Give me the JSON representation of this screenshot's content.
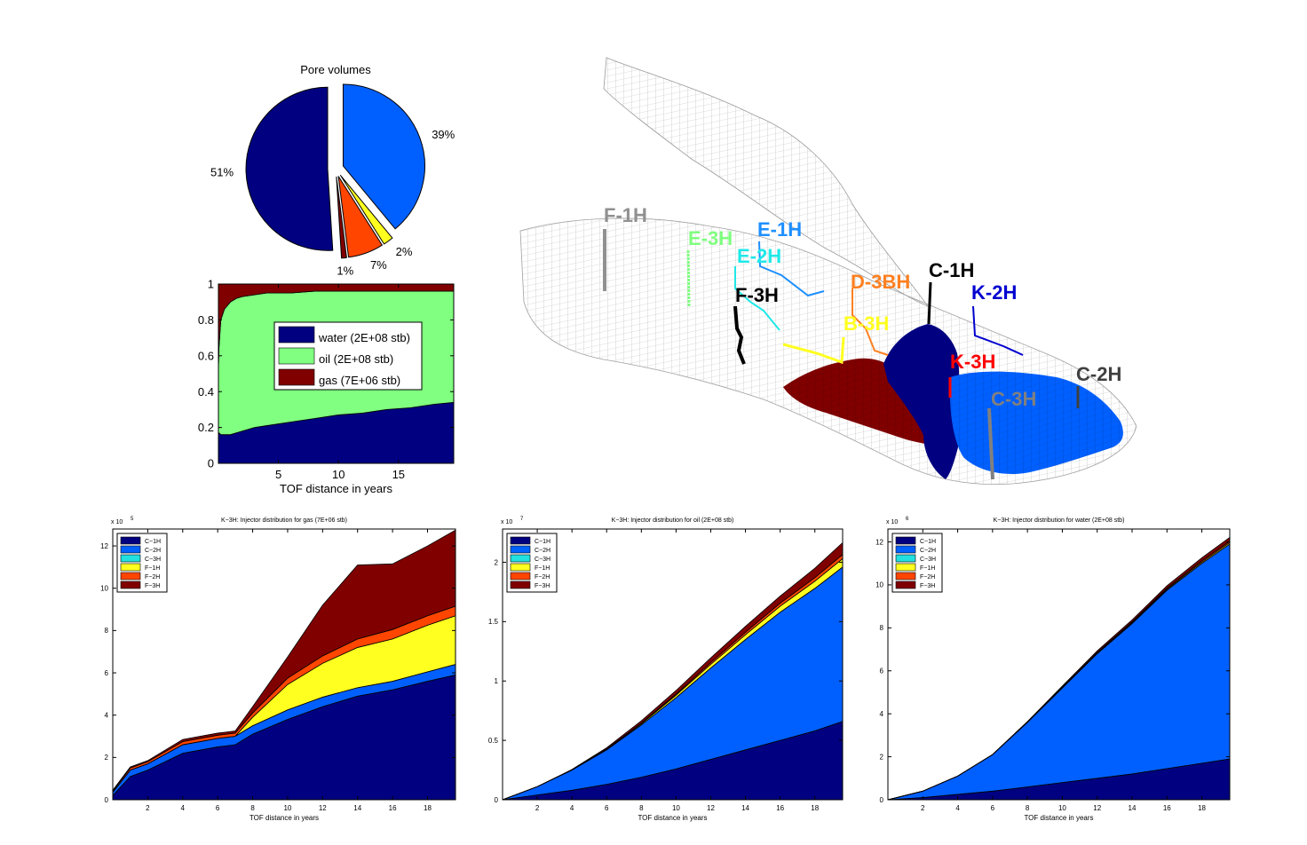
{
  "colors": {
    "water": "#000080",
    "oil": "#80ff80",
    "gas": "#800000",
    "C-1H": "#000080",
    "C-2H": "#0060ff",
    "C-3H": "#20e0e0",
    "F-1H": "#ffff20",
    "F-2H": "#ff4500",
    "F-3H": "#800000"
  },
  "chart_data": [
    {
      "type": "pie",
      "title": "Pore volumes",
      "values": [
        51,
        39,
        2,
        7,
        1
      ],
      "labels": [
        "51%",
        "39%",
        "2%",
        "7%",
        "1%"
      ],
      "slice_colors": [
        "#000080",
        "#0060ff",
        "#ffff20",
        "#ff4500",
        "#800000"
      ],
      "exploded": [
        true,
        true,
        true,
        true,
        true
      ]
    },
    {
      "type": "area",
      "title": "",
      "xlabel": "TOF distance in years",
      "ylabel": "",
      "xlim": [
        0,
        19.6
      ],
      "ylim": [
        0,
        1
      ],
      "xticks": [
        5,
        10,
        15
      ],
      "yticks": [
        0,
        0.2,
        0.4,
        0.6,
        0.8,
        1
      ],
      "ytick_labels": [
        "0",
        "0.2",
        "0.4",
        "0.6",
        "0.8",
        "1"
      ],
      "legend": "center",
      "x": [
        0,
        0.05,
        0.2,
        0.5,
        1,
        1.5,
        2,
        3,
        4,
        5,
        6,
        8,
        10,
        12,
        14,
        16,
        18,
        19.6
      ],
      "series": [
        {
          "name": "water (2E+08 stb)",
          "values": [
            0.17,
            0.17,
            0.16,
            0.16,
            0.16,
            0.17,
            0.18,
            0.2,
            0.21,
            0.22,
            0.23,
            0.25,
            0.27,
            0.28,
            0.3,
            0.31,
            0.33,
            0.34
          ]
        },
        {
          "name": "oil (2E+08 stb)",
          "values": [
            0.36,
            0.48,
            0.64,
            0.7,
            0.74,
            0.75,
            0.75,
            0.74,
            0.74,
            0.73,
            0.72,
            0.71,
            0.69,
            0.68,
            0.66,
            0.65,
            0.63,
            0.62
          ]
        },
        {
          "name": "gas (7E+06 stb)",
          "values": [
            0.47,
            0.35,
            0.2,
            0.14,
            0.1,
            0.08,
            0.07,
            0.06,
            0.05,
            0.05,
            0.05,
            0.04,
            0.04,
            0.04,
            0.04,
            0.04,
            0.04,
            0.04
          ]
        }
      ]
    },
    {
      "type": "area",
      "title": "K−3H: Injector distribution for gas (7E+06 stb)",
      "xlabel": "TOF distance in years",
      "ylabel": "",
      "y_exponent": "x 10",
      "y_exponent_power": "5",
      "xlim": [
        0,
        19.6
      ],
      "ylim": [
        0,
        12.8
      ],
      "xticks": [
        2,
        4,
        6,
        8,
        10,
        12,
        14,
        16,
        18
      ],
      "yticks": [
        0,
        2,
        4,
        6,
        8,
        10,
        12
      ],
      "legend": "top-left",
      "x": [
        0,
        1,
        2,
        4,
        6,
        7,
        8,
        10,
        12,
        14,
        16,
        18,
        19.6
      ],
      "series": [
        {
          "name": "C−1H",
          "values": [
            0.2,
            1.1,
            1.4,
            2.2,
            2.5,
            2.6,
            3.1,
            3.8,
            4.4,
            4.9,
            5.2,
            5.6,
            5.9
          ]
        },
        {
          "name": "C−2H",
          "values": [
            0.15,
            0.3,
            0.3,
            0.4,
            0.4,
            0.4,
            0.4,
            0.45,
            0.45,
            0.4,
            0.4,
            0.45,
            0.5
          ]
        },
        {
          "name": "C−3H",
          "values": [
            0,
            0,
            0,
            0,
            0,
            0,
            0,
            0,
            0,
            0,
            0,
            0,
            0
          ]
        },
        {
          "name": "F−1H",
          "values": [
            0,
            0,
            0,
            0,
            0,
            0,
            0.4,
            1.2,
            1.6,
            1.9,
            2.0,
            2.2,
            2.3
          ]
        },
        {
          "name": "F−2H",
          "values": [
            0.05,
            0.1,
            0.1,
            0.15,
            0.15,
            0.15,
            0.2,
            0.3,
            0.35,
            0.4,
            0.45,
            0.45,
            0.45
          ]
        },
        {
          "name": "F−3H",
          "values": [
            0.05,
            0.05,
            0.05,
            0.1,
            0.1,
            0.1,
            0.3,
            1.0,
            2.4,
            3.5,
            3.1,
            3.3,
            3.6
          ]
        }
      ]
    },
    {
      "type": "area",
      "title": "K−3H: Injector distribution for oil (2E+08 stb)",
      "xlabel": "TOF distance in years",
      "ylabel": "",
      "y_exponent": "x 10",
      "y_exponent_power": "7",
      "xlim": [
        0,
        19.6
      ],
      "ylim": [
        0,
        2.28
      ],
      "xticks": [
        2,
        4,
        6,
        8,
        10,
        12,
        14,
        16,
        18
      ],
      "yticks": [
        0,
        0.5,
        1,
        1.5,
        2
      ],
      "ytick_labels": [
        "0",
        "0.5",
        "1",
        "1.5",
        "2"
      ],
      "legend": "top-left",
      "x": [
        0,
        2,
        4,
        6,
        8,
        10,
        12,
        14,
        16,
        18,
        19.6
      ],
      "series": [
        {
          "name": "C−1H",
          "values": [
            0,
            0.04,
            0.08,
            0.13,
            0.19,
            0.26,
            0.34,
            0.42,
            0.5,
            0.58,
            0.66
          ]
        },
        {
          "name": "C−2H",
          "values": [
            0,
            0.07,
            0.17,
            0.29,
            0.44,
            0.6,
            0.77,
            0.93,
            1.08,
            1.2,
            1.3
          ]
        },
        {
          "name": "C−3H",
          "values": [
            0,
            0,
            0,
            0,
            0,
            0,
            0,
            0,
            0,
            0,
            0
          ]
        },
        {
          "name": "F−1H",
          "values": [
            0,
            0,
            0,
            0.005,
            0.01,
            0.02,
            0.03,
            0.04,
            0.05,
            0.06,
            0.07
          ]
        },
        {
          "name": "F−2H",
          "values": [
            0,
            0,
            0,
            0.003,
            0.005,
            0.01,
            0.015,
            0.02,
            0.025,
            0.03,
            0.035
          ]
        },
        {
          "name": "F−3H",
          "values": [
            0,
            0,
            0.005,
            0.01,
            0.02,
            0.03,
            0.04,
            0.05,
            0.06,
            0.08,
            0.1
          ]
        }
      ]
    },
    {
      "type": "area",
      "title": "K−3H: Injector distribution for water (2E+08 stb)",
      "xlabel": "TOF distance in years",
      "ylabel": "",
      "y_exponent": "x 10",
      "y_exponent_power": "6",
      "xlim": [
        0,
        19.6
      ],
      "ylim": [
        0,
        12.6
      ],
      "xticks": [
        2,
        4,
        6,
        8,
        10,
        12,
        14,
        16,
        18
      ],
      "yticks": [
        0,
        2,
        4,
        6,
        8,
        10,
        12
      ],
      "legend": "top-left",
      "x": [
        0,
        2,
        4,
        6,
        8,
        10,
        12,
        14,
        16,
        18,
        19.6
      ],
      "series": [
        {
          "name": "C−1H",
          "values": [
            0,
            0.1,
            0.25,
            0.4,
            0.6,
            0.8,
            1.0,
            1.2,
            1.45,
            1.7,
            1.9
          ]
        },
        {
          "name": "C−2H",
          "values": [
            0,
            0.3,
            0.85,
            1.7,
            3.0,
            4.4,
            5.8,
            7.0,
            8.3,
            9.3,
            10.0
          ]
        },
        {
          "name": "C−3H",
          "values": [
            0,
            0,
            0,
            0,
            0,
            0,
            0,
            0,
            0,
            0,
            0
          ]
        },
        {
          "name": "F−1H",
          "values": [
            0,
            0,
            0,
            0,
            0.01,
            0.02,
            0.03,
            0.04,
            0.05,
            0.06,
            0.07
          ]
        },
        {
          "name": "F−2H",
          "values": [
            0,
            0,
            0,
            0,
            0.01,
            0.02,
            0.03,
            0.04,
            0.05,
            0.06,
            0.07
          ]
        },
        {
          "name": "F−3H",
          "values": [
            0,
            0,
            0,
            0.01,
            0.02,
            0.05,
            0.07,
            0.09,
            0.11,
            0.14,
            0.17
          ]
        }
      ]
    }
  ],
  "reservoir": {
    "well_labels": [
      "F-1H",
      "E-3H",
      "E-1H",
      "E-2H",
      "F-3H",
      "D-3BH",
      "C-1H",
      "K-2H",
      "B-3H",
      "K-3H",
      "C-2H",
      "C-3H"
    ],
    "well_colors": [
      "#909090",
      "#80ff80",
      "#1e8fff",
      "#20e8e8",
      "#000000",
      "#ff8020",
      "#000000",
      "#0000d0",
      "#ffff20",
      "#ff0000",
      "#404040",
      "#808080"
    ]
  }
}
